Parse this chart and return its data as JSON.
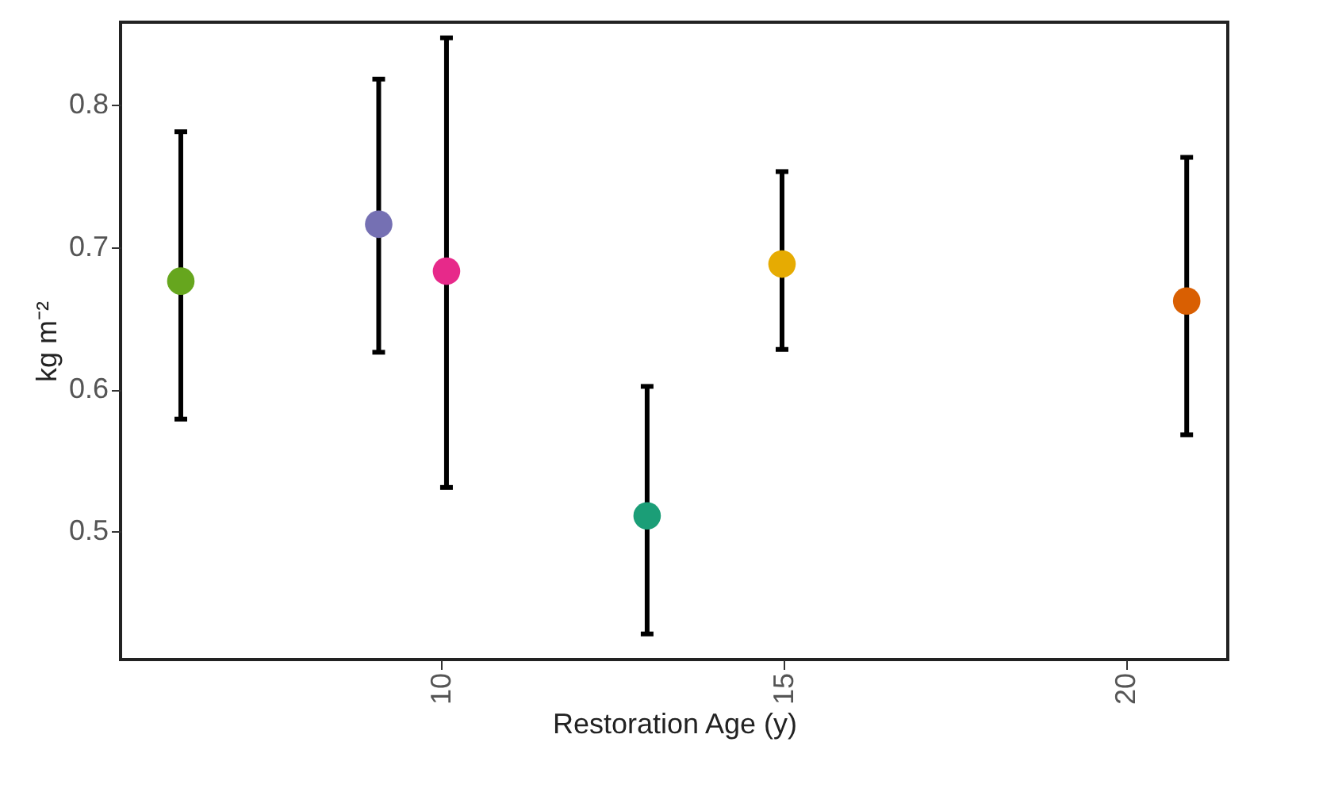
{
  "chart_data": {
    "type": "scatter",
    "xlabel": "Restoration Age (y)",
    "ylabel": "kg m⁻²",
    "x": [
      6.19,
      9.08,
      10.07,
      13.0,
      14.97,
      20.88
    ],
    "values": [
      0.676,
      0.716,
      0.683,
      0.511,
      0.688,
      0.662
    ],
    "errors": [
      [
        0.579,
        0.781
      ],
      [
        0.626,
        0.818
      ],
      [
        0.531,
        0.847
      ],
      [
        0.428,
        0.602
      ],
      [
        0.628,
        0.753
      ],
      [
        0.568,
        0.763
      ]
    ],
    "colors": [
      "#66a61e",
      "#7570b3",
      "#e7298a",
      "#1b9e77",
      "#e6ab02",
      "#d95f02"
    ],
    "xlim": [
      5.31,
      21.48
    ],
    "xticks": [
      10,
      15,
      20
    ],
    "ylim": [
      0.41,
      0.858
    ],
    "yticks": [
      0.5,
      0.6,
      0.7,
      0.8
    ],
    "marker": "circle",
    "grid": false,
    "legend": false
  }
}
